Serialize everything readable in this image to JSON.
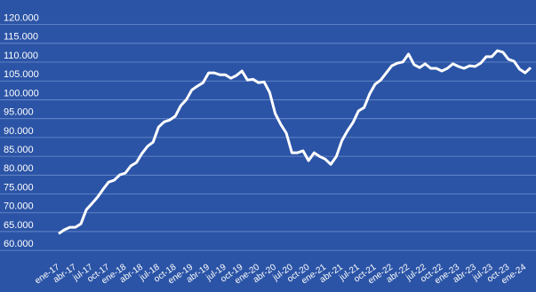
{
  "chart_data": {
    "type": "line",
    "categories": [
      "ene-17",
      null,
      null,
      "abr-17",
      null,
      null,
      "jul-17",
      null,
      null,
      "oct-17",
      null,
      null,
      "ene-18",
      null,
      null,
      "abr-18",
      null,
      null,
      "jul-18",
      null,
      null,
      "oct-18",
      null,
      null,
      "ene-19",
      null,
      null,
      "abr-19",
      null,
      null,
      "jul-19",
      null,
      null,
      "oct-19",
      null,
      null,
      "ene-20",
      null,
      null,
      "abr-20",
      null,
      null,
      "jul-20",
      null,
      null,
      "oct-20",
      null,
      null,
      "ene-21",
      null,
      null,
      "abr-21",
      null,
      null,
      "jul-21",
      null,
      null,
      "oct-21",
      null,
      null,
      "ene-22",
      null,
      null,
      "abr-22",
      null,
      null,
      "jul-22",
      null,
      null,
      "oct-22",
      null,
      null,
      "ene-23",
      null,
      null,
      "abr-23",
      null,
      null,
      "jul-23",
      null,
      null,
      "oct-23",
      null,
      null,
      "ene-24",
      null
    ],
    "series": [
      {
        "color": "#ffffff",
        "values": [
          62800,
          63800,
          64500,
          64500,
          65400,
          69200,
          70800,
          72500,
          74600,
          76500,
          77000,
          78400,
          78900,
          80800,
          81700,
          84100,
          86000,
          87100,
          91100,
          92500,
          93000,
          94000,
          96800,
          98400,
          101000,
          102000,
          102900,
          105500,
          105500,
          105000,
          105000,
          104100,
          104800,
          106000,
          103600,
          103800,
          102900,
          103100,
          100300,
          94700,
          91800,
          89500,
          84300,
          84300,
          84800,
          82200,
          84300,
          83300,
          82600,
          81200,
          83300,
          87500,
          90100,
          92300,
          95400,
          96300,
          99900,
          102500,
          103600,
          105500,
          107400,
          108100,
          108400,
          110500,
          107700,
          106900,
          107900,
          106700,
          106700,
          106000,
          106700,
          107900,
          107200,
          106700,
          107400,
          107200,
          108100,
          109800,
          109800,
          111400,
          111000,
          109100,
          108600,
          106500,
          105500,
          106900
        ]
      }
    ],
    "ylim": [
      56500,
      122500
    ],
    "yticks": [
      {
        "value": 60000,
        "label": "60.000"
      },
      {
        "value": 65000,
        "label": "65.000"
      },
      {
        "value": 70000,
        "label": "70.000"
      },
      {
        "value": 75000,
        "label": "75.000"
      },
      {
        "value": 80000,
        "label": "80.000"
      },
      {
        "value": 85000,
        "label": "85.000"
      },
      {
        "value": 90000,
        "label": "90.000"
      },
      {
        "value": 95000,
        "label": "95.000"
      },
      {
        "value": 100000,
        "label": "100.000"
      },
      {
        "value": 105000,
        "label": "105.000"
      },
      {
        "value": 110000,
        "label": "110.000"
      },
      {
        "value": 115000,
        "label": "115.000"
      },
      {
        "value": 120000,
        "label": "120.000"
      }
    ],
    "grid": true
  }
}
